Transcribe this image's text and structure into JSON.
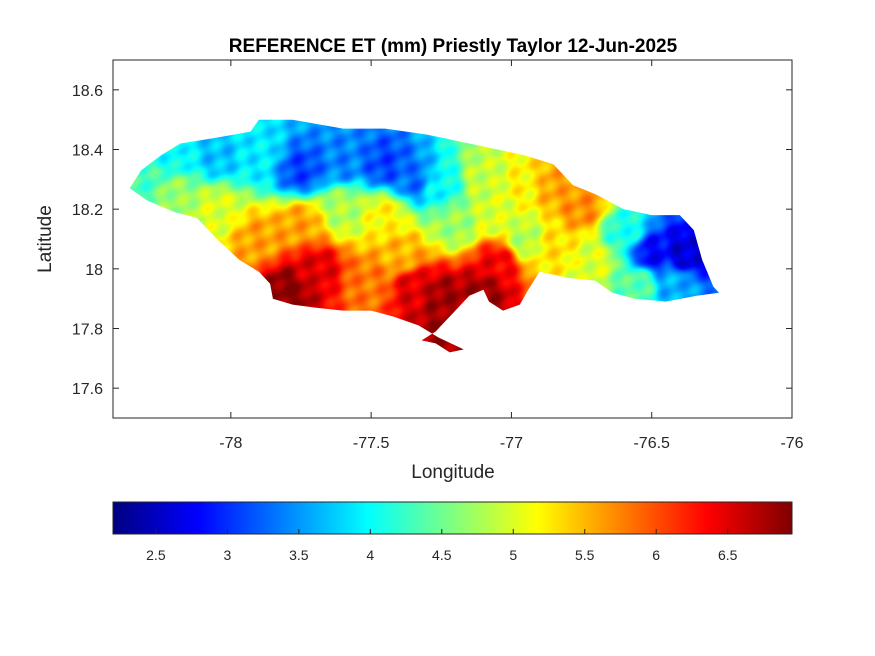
{
  "chart_data": {
    "type": "heatmap",
    "title": "REFERENCE ET (mm) Priestly Taylor 12-Jun-2025",
    "xlabel": "Longitude",
    "ylabel": "Latitude",
    "xlim": [
      -78.42,
      -76.0
    ],
    "ylim": [
      17.5,
      18.7
    ],
    "xticks": [
      -78,
      -77.5,
      -77,
      -76.5,
      -76
    ],
    "xtick_labels": [
      "-78",
      "-77.5",
      "-77",
      "-76.5",
      "-76"
    ],
    "yticks": [
      17.6,
      17.8,
      18.0,
      18.2,
      18.4,
      18.6
    ],
    "ytick_labels": [
      "17.6",
      "17.8",
      "18",
      "18.2",
      "18.4",
      "18.6"
    ],
    "grid": false,
    "colormap": "jet",
    "colorbar": {
      "orientation": "horizontal",
      "location": "below",
      "clim": [
        2.2,
        6.95
      ],
      "ticks": [
        2.5,
        3,
        3.5,
        4,
        4.5,
        5,
        5.5,
        6,
        6.5
      ],
      "tick_labels": [
        "2.5",
        "3",
        "3.5",
        "4",
        "4.5",
        "5",
        "5.5",
        "6",
        "6.5"
      ]
    },
    "region_outline": [
      [
        -78.36,
        18.27
      ],
      [
        -78.32,
        18.33
      ],
      [
        -78.25,
        18.38
      ],
      [
        -78.18,
        18.42
      ],
      [
        -78.05,
        18.44
      ],
      [
        -77.93,
        18.46
      ],
      [
        -77.9,
        18.5
      ],
      [
        -77.78,
        18.5
      ],
      [
        -77.6,
        18.47
      ],
      [
        -77.45,
        18.47
      ],
      [
        -77.3,
        18.45
      ],
      [
        -77.1,
        18.41
      ],
      [
        -76.95,
        18.38
      ],
      [
        -76.85,
        18.35
      ],
      [
        -76.78,
        18.28
      ],
      [
        -76.7,
        18.25
      ],
      [
        -76.6,
        18.2
      ],
      [
        -76.5,
        18.18
      ],
      [
        -76.4,
        18.18
      ],
      [
        -76.35,
        18.13
      ],
      [
        -76.32,
        18.03
      ],
      [
        -76.28,
        17.94
      ],
      [
        -76.26,
        17.92
      ],
      [
        -76.34,
        17.91
      ],
      [
        -76.45,
        17.89
      ],
      [
        -76.56,
        17.9
      ],
      [
        -76.64,
        17.92
      ],
      [
        -76.7,
        17.96
      ],
      [
        -76.8,
        17.97
      ],
      [
        -76.9,
        17.99
      ],
      [
        -76.94,
        17.93
      ],
      [
        -76.97,
        17.88
      ],
      [
        -77.03,
        17.86
      ],
      [
        -77.08,
        17.89
      ],
      [
        -77.1,
        17.93
      ],
      [
        -77.15,
        17.91
      ],
      [
        -77.2,
        17.86
      ],
      [
        -77.25,
        17.81
      ],
      [
        -77.27,
        17.79
      ],
      [
        -77.32,
        17.76
      ],
      [
        -77.27,
        17.75
      ],
      [
        -77.22,
        17.72
      ],
      [
        -77.17,
        17.73
      ],
      [
        -77.26,
        17.77
      ],
      [
        -77.33,
        17.81
      ],
      [
        -77.42,
        17.84
      ],
      [
        -77.5,
        17.86
      ],
      [
        -77.6,
        17.86
      ],
      [
        -77.7,
        17.87
      ],
      [
        -77.78,
        17.88
      ],
      [
        -77.85,
        17.9
      ],
      [
        -77.86,
        17.95
      ],
      [
        -77.9,
        17.99
      ],
      [
        -77.97,
        18.03
      ],
      [
        -78.05,
        18.1
      ],
      [
        -78.12,
        18.17
      ],
      [
        -78.2,
        18.19
      ],
      [
        -78.3,
        18.23
      ],
      [
        -78.36,
        18.27
      ]
    ],
    "value_field": [
      {
        "lon": -78.3,
        "lat": 18.3,
        "value": 4.3
      },
      {
        "lon": -78.2,
        "lat": 18.38,
        "value": 4.0
      },
      {
        "lon": -78.05,
        "lat": 18.38,
        "value": 3.7
      },
      {
        "lon": -77.9,
        "lat": 18.38,
        "value": 3.9
      },
      {
        "lon": -77.75,
        "lat": 18.33,
        "value": 3.1
      },
      {
        "lon": -77.6,
        "lat": 18.36,
        "value": 3.4
      },
      {
        "lon": -77.45,
        "lat": 18.35,
        "value": 3.1
      },
      {
        "lon": -77.35,
        "lat": 18.3,
        "value": 3.3
      },
      {
        "lon": -77.25,
        "lat": 18.28,
        "value": 4.0
      },
      {
        "lon": -77.1,
        "lat": 18.3,
        "value": 4.9
      },
      {
        "lon": -76.95,
        "lat": 18.28,
        "value": 5.2
      },
      {
        "lon": -76.85,
        "lat": 18.28,
        "value": 5.6
      },
      {
        "lon": -76.75,
        "lat": 18.2,
        "value": 5.7
      },
      {
        "lon": -76.6,
        "lat": 18.12,
        "value": 4.1
      },
      {
        "lon": -76.5,
        "lat": 18.05,
        "value": 2.8
      },
      {
        "lon": -76.38,
        "lat": 18.05,
        "value": 2.6
      },
      {
        "lon": -76.42,
        "lat": 17.95,
        "value": 3.6
      },
      {
        "lon": -76.55,
        "lat": 17.95,
        "value": 4.4
      },
      {
        "lon": -76.7,
        "lat": 18.03,
        "value": 5.0
      },
      {
        "lon": -76.85,
        "lat": 18.08,
        "value": 5.3
      },
      {
        "lon": -76.95,
        "lat": 18.1,
        "value": 4.8
      },
      {
        "lon": -77.05,
        "lat": 18.02,
        "value": 6.4
      },
      {
        "lon": -77.1,
        "lat": 17.92,
        "value": 6.8
      },
      {
        "lon": -77.25,
        "lat": 17.9,
        "value": 6.8
      },
      {
        "lon": -77.35,
        "lat": 17.93,
        "value": 6.5
      },
      {
        "lon": -77.4,
        "lat": 18.05,
        "value": 5.5
      },
      {
        "lon": -77.45,
        "lat": 18.18,
        "value": 5.2
      },
      {
        "lon": -77.6,
        "lat": 18.2,
        "value": 4.8
      },
      {
        "lon": -77.75,
        "lat": 18.15,
        "value": 5.6
      },
      {
        "lon": -77.7,
        "lat": 18.0,
        "value": 6.5
      },
      {
        "lon": -77.8,
        "lat": 17.93,
        "value": 6.9
      },
      {
        "lon": -77.5,
        "lat": 17.95,
        "value": 5.8
      },
      {
        "lon": -77.9,
        "lat": 18.1,
        "value": 5.6
      },
      {
        "lon": -78.05,
        "lat": 18.2,
        "value": 5.0
      },
      {
        "lon": -78.2,
        "lat": 18.25,
        "value": 4.7
      },
      {
        "lon": -77.2,
        "lat": 18.15,
        "value": 4.7
      },
      {
        "lon": -77.05,
        "lat": 18.18,
        "value": 5.0
      },
      {
        "lon": -77.25,
        "lat": 17.78,
        "value": 6.8
      }
    ]
  }
}
